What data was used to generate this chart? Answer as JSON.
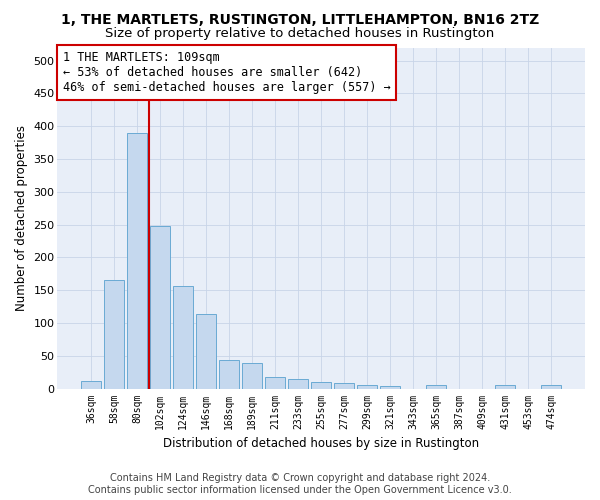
{
  "title": "1, THE MARTLETS, RUSTINGTON, LITTLEHAMPTON, BN16 2TZ",
  "subtitle": "Size of property relative to detached houses in Rustington",
  "xlabel": "Distribution of detached houses by size in Rustington",
  "ylabel": "Number of detached properties",
  "categories": [
    "36sqm",
    "58sqm",
    "80sqm",
    "102sqm",
    "124sqm",
    "146sqm",
    "168sqm",
    "189sqm",
    "211sqm",
    "233sqm",
    "255sqm",
    "277sqm",
    "299sqm",
    "321sqm",
    "343sqm",
    "365sqm",
    "387sqm",
    "409sqm",
    "431sqm",
    "453sqm",
    "474sqm"
  ],
  "values": [
    12,
    165,
    390,
    248,
    157,
    113,
    43,
    39,
    18,
    15,
    10,
    8,
    6,
    4,
    0,
    5,
    0,
    0,
    5,
    0,
    5
  ],
  "bar_color": "#c5d8ee",
  "bar_edgecolor": "#6aaad4",
  "bar_linewidth": 0.7,
  "vline_x": 2.5,
  "vline_color": "#cc0000",
  "vline_linewidth": 1.5,
  "annotation_text": "1 THE MARTLETS: 109sqm\n← 53% of detached houses are smaller (642)\n46% of semi-detached houses are larger (557) →",
  "annotation_box_color": "white",
  "annotation_box_edgecolor": "#cc0000",
  "annotation_fontsize": 8.5,
  "grid_color": "#c8d4e8",
  "background_color": "#e8eef8",
  "ylim": [
    0,
    520
  ],
  "yticks": [
    0,
    50,
    100,
    150,
    200,
    250,
    300,
    350,
    400,
    450,
    500
  ],
  "footer_line1": "Contains HM Land Registry data © Crown copyright and database right 2024.",
  "footer_line2": "Contains public sector information licensed under the Open Government Licence v3.0.",
  "title_fontsize": 10,
  "subtitle_fontsize": 9.5,
  "xlabel_fontsize": 8.5,
  "ylabel_fontsize": 8.5,
  "footer_fontsize": 7
}
